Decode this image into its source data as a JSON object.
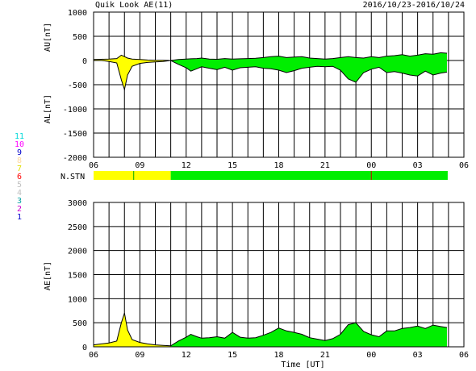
{
  "header": {
    "title": "Quik Look AE(11)",
    "date_range": "2016/10/23-2016/10/24"
  },
  "colors": {
    "yellow_fill": "#ffff00",
    "green_fill": "#00ee00",
    "trace": "#000000",
    "grid": "#000000",
    "zero_marker": "#cc0000"
  },
  "station_legend": [
    {
      "num": "11",
      "color": "#00d8d8"
    },
    {
      "num": "10",
      "color": "#ff00ff"
    },
    {
      "num": "9",
      "color": "#0000cc"
    },
    {
      "num": "8",
      "color": "#ffd8a0"
    },
    {
      "num": "7",
      "color": "#e0e000"
    },
    {
      "num": "6",
      "color": "#ff0000"
    },
    {
      "num": "5",
      "color": "#c0c0c0"
    },
    {
      "num": "4",
      "color": "#c0c0c0"
    },
    {
      "num": "3",
      "color": "#00a0a0"
    },
    {
      "num": "2",
      "color": "#cc00cc"
    },
    {
      "num": "1",
      "color": "#0000cc"
    }
  ],
  "chart_data": [
    {
      "type": "area",
      "name": "AU/AL panel",
      "ylabel_upper": "AU[nT]",
      "ylabel_lower": "AL[nT]",
      "ylim": [
        -2000,
        1000
      ],
      "yticks": [
        1000,
        500,
        0,
        -500,
        -1000,
        -1500,
        -2000
      ],
      "xlim_hours": [
        6,
        30
      ],
      "xtick_labels": [
        "06",
        "09",
        "12",
        "15",
        "18",
        "21",
        "00",
        "03",
        "06"
      ],
      "x_hours": [
        6,
        6.5,
        7,
        7.5,
        7.8,
        8,
        8.2,
        8.5,
        9,
        9.5,
        10,
        10.5,
        11,
        11.5,
        12,
        12.3,
        12.7,
        13,
        13.5,
        14,
        14.5,
        15,
        15.5,
        16,
        16.5,
        17,
        17.5,
        18,
        18.5,
        19,
        19.5,
        20,
        20.5,
        21,
        21.5,
        22,
        22.5,
        23,
        23.5,
        24,
        24.5,
        25,
        25.5,
        26,
        26.5,
        27,
        27.5,
        28,
        28.5,
        28.9
      ],
      "au": [
        20,
        25,
        30,
        40,
        110,
        80,
        50,
        30,
        20,
        10,
        5,
        5,
        0,
        20,
        30,
        35,
        40,
        50,
        30,
        25,
        40,
        30,
        35,
        40,
        45,
        60,
        80,
        90,
        60,
        70,
        80,
        50,
        40,
        30,
        40,
        60,
        80,
        60,
        50,
        80,
        60,
        90,
        100,
        120,
        90,
        110,
        140,
        130,
        160,
        150
      ],
      "al": [
        0,
        0,
        -20,
        -50,
        -400,
        -600,
        -300,
        -120,
        -60,
        -40,
        -30,
        -20,
        0,
        -80,
        -150,
        -220,
        -170,
        -130,
        -160,
        -190,
        -140,
        -200,
        -150,
        -140,
        -130,
        -160,
        -170,
        -200,
        -250,
        -210,
        -160,
        -140,
        -120,
        -130,
        -120,
        -200,
        -380,
        -450,
        -250,
        -180,
        -140,
        -250,
        -230,
        -260,
        -300,
        -320,
        -220,
        -300,
        -260,
        -240
      ],
      "yellow_until_hour": 11
    },
    {
      "type": "area",
      "name": "AE panel",
      "ylabel": "AE[nT]",
      "xlabel": "Time [UT]",
      "ylim": [
        0,
        3000
      ],
      "yticks": [
        3000,
        2500,
        2000,
        1500,
        1000,
        500,
        0
      ],
      "xlim_hours": [
        6,
        30
      ],
      "xtick_labels": [
        "06",
        "09",
        "12",
        "15",
        "18",
        "21",
        "00",
        "03",
        "06"
      ],
      "x_hours": [
        6,
        6.5,
        7,
        7.5,
        7.8,
        8,
        8.2,
        8.5,
        9,
        9.5,
        10,
        10.5,
        11,
        11.5,
        12,
        12.3,
        12.7,
        13,
        13.5,
        14,
        14.5,
        15,
        15.5,
        16,
        16.5,
        17,
        17.5,
        18,
        18.5,
        19,
        19.5,
        20,
        20.5,
        21,
        21.5,
        22,
        22.5,
        23,
        23.5,
        24,
        24.5,
        25,
        25.5,
        26,
        26.5,
        27,
        27.5,
        28,
        28.5,
        28.9
      ],
      "values": [
        40,
        60,
        80,
        120,
        500,
        700,
        350,
        150,
        90,
        60,
        40,
        30,
        20,
        120,
        200,
        260,
        210,
        180,
        190,
        210,
        180,
        300,
        200,
        180,
        190,
        240,
        300,
        390,
        330,
        300,
        260,
        190,
        160,
        130,
        170,
        260,
        460,
        500,
        320,
        250,
        210,
        330,
        330,
        380,
        400,
        430,
        380,
        450,
        420,
        400
      ],
      "yellow_until_hour": 11
    }
  ],
  "nstn": {
    "label": "N.STN",
    "segments": [
      {
        "from_hour": 6,
        "to_hour": 11,
        "color": "#ffff00"
      },
      {
        "from_hour": 11,
        "to_hour": 28.95,
        "color": "#00ee00"
      }
    ],
    "markers": [
      {
        "hour": 8.6,
        "color": "#00aa00"
      },
      {
        "hour": 24,
        "color": "#cc0000"
      }
    ]
  }
}
